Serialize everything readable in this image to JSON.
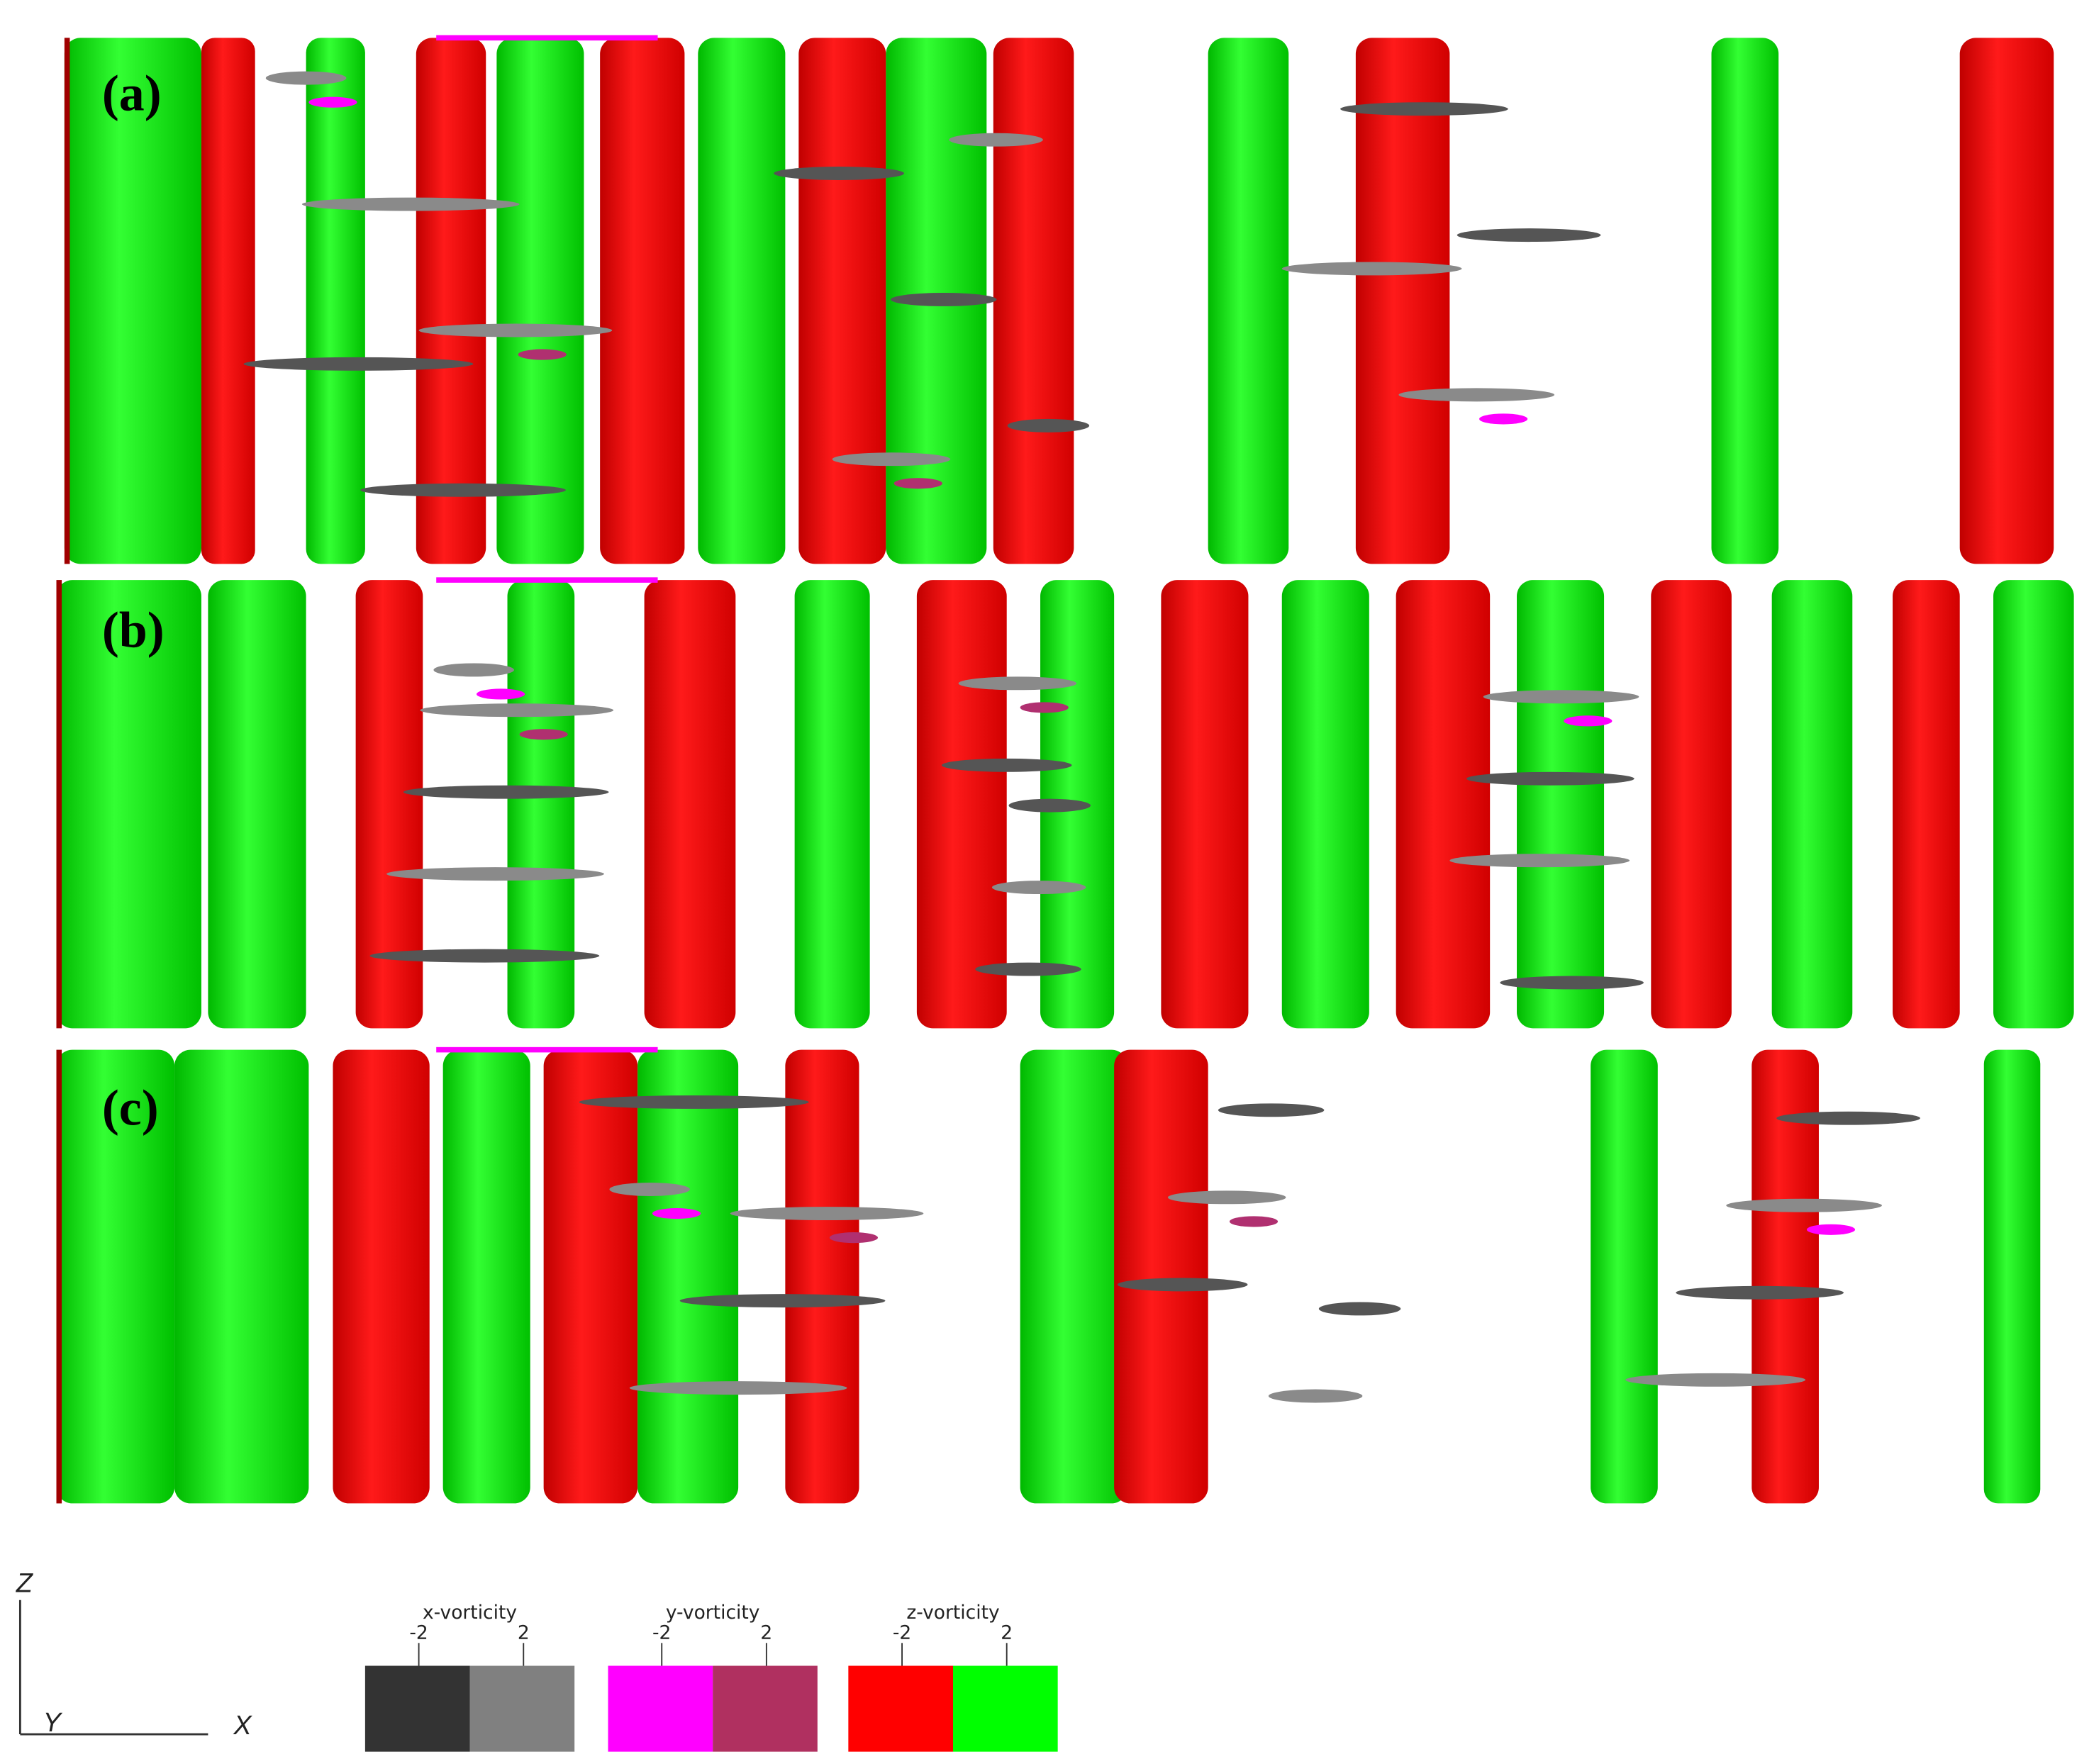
{
  "panels": [
    {
      "label": "(a)"
    },
    {
      "label": "(b)"
    },
    {
      "label": "(c)"
    }
  ],
  "axes": {
    "z": "Z",
    "y": "Y",
    "x": "X"
  },
  "legend": [
    {
      "title": "x-vorticity",
      "ticks": [
        -2,
        2
      ]
    },
    {
      "title": "y-vorticity",
      "ticks": [
        -2,
        2
      ]
    },
    {
      "title": "z-vorticity",
      "ticks": [
        -2,
        2
      ]
    }
  ]
}
